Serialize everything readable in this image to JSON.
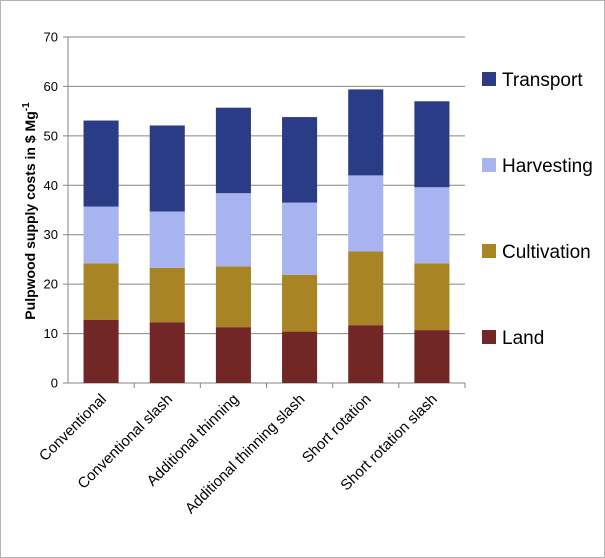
{
  "chart_data": {
    "type": "bar",
    "stacked": true,
    "title": "",
    "xlabel": "",
    "ylabel": "Pulpwood supply costs in $ Mg",
    "ylabel_superscript": "-1",
    "ylim": [
      0,
      70
    ],
    "yticks": [
      0,
      10,
      20,
      30,
      40,
      50,
      60,
      70
    ],
    "grid": true,
    "legend_position": "right",
    "categories": [
      "Conventional",
      "Conventional slash",
      "Additional thinning",
      "Additional thinning slash",
      "Short rotation",
      "Short rotation slash"
    ],
    "series": [
      {
        "name": "Land",
        "color": "#722626",
        "values": [
          12.8,
          12.3,
          11.3,
          10.4,
          11.7,
          10.7
        ]
      },
      {
        "name": "Cultivation",
        "color": "#a98424",
        "values": [
          11.4,
          11.0,
          12.3,
          11.5,
          14.9,
          13.5
        ]
      },
      {
        "name": "Harvesting",
        "color": "#a7b4f0",
        "values": [
          11.5,
          11.4,
          14.8,
          14.6,
          15.4,
          15.4
        ]
      },
      {
        "name": "Transport",
        "color": "#2b3c87",
        "values": [
          17.4,
          17.4,
          17.3,
          17.3,
          17.4,
          17.4
        ]
      }
    ]
  }
}
